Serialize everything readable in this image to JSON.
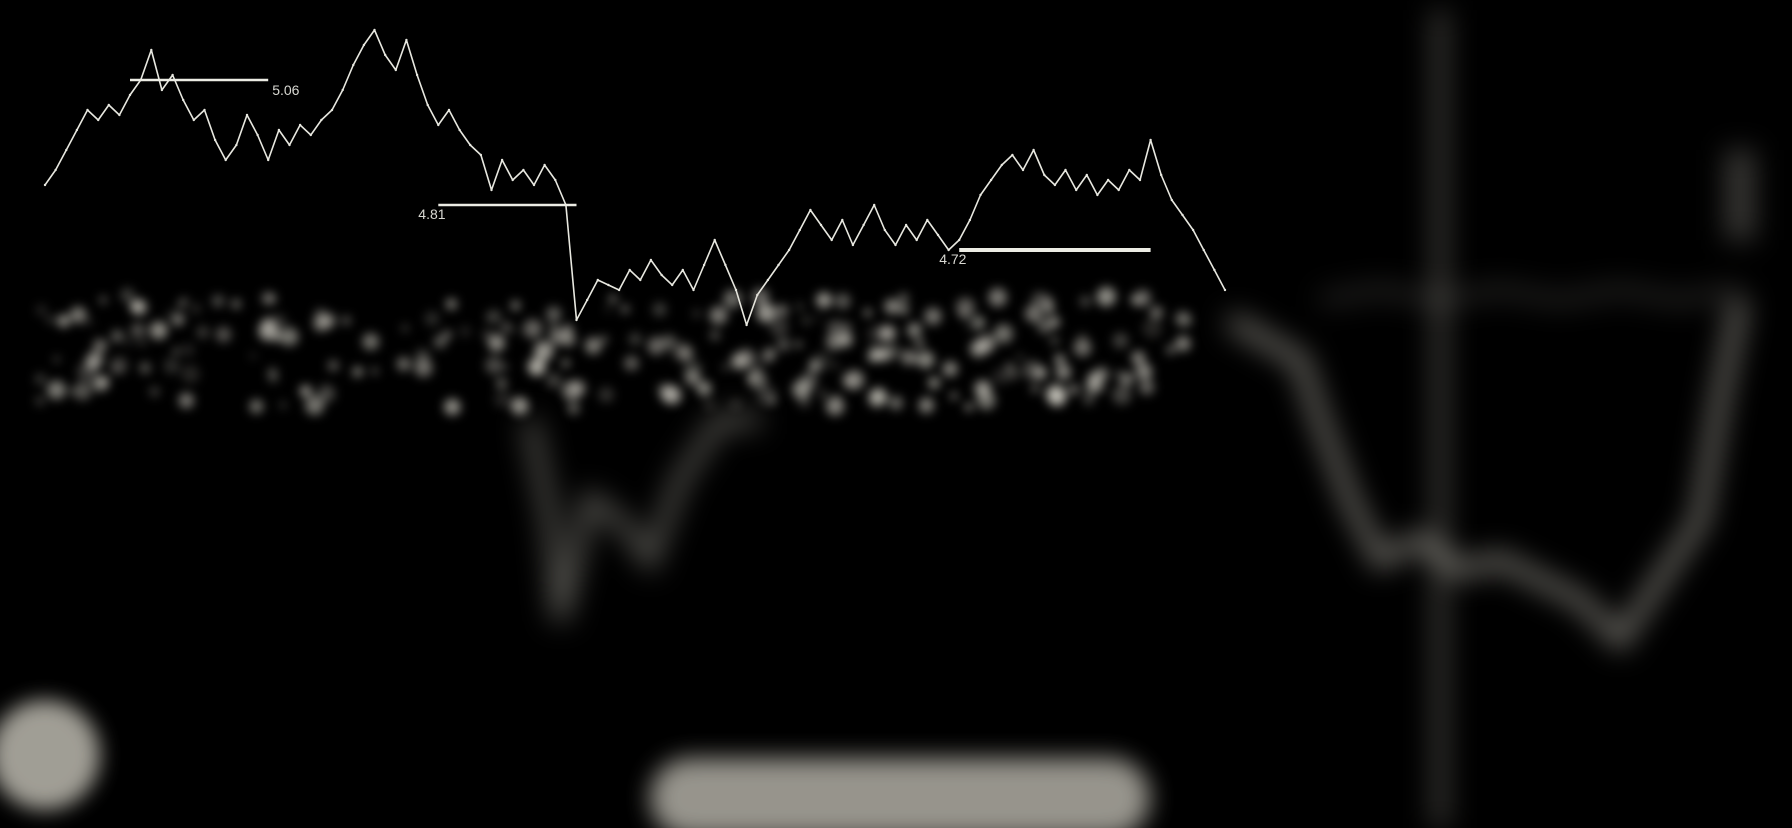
{
  "chart_data": {
    "type": "line",
    "title": "",
    "xlabel": "",
    "ylabel": "",
    "colors": {
      "background": "#000000",
      "line": "#e8e8e0",
      "level": "#ecece4"
    },
    "grid": false,
    "legend": "none",
    "ylim": [
      4.4,
      5.2
    ],
    "series": [
      {
        "values": [
          4.85,
          4.88,
          4.92,
          4.96,
          5.0,
          4.98,
          5.01,
          4.99,
          5.03,
          5.06,
          5.12,
          5.04,
          5.07,
          5.02,
          4.98,
          5.0,
          4.94,
          4.9,
          4.93,
          4.99,
          4.95,
          4.9,
          4.96,
          4.93,
          4.97,
          4.95,
          4.98,
          5.0,
          5.04,
          5.09,
          5.13,
          5.16,
          5.11,
          5.08,
          5.14,
          5.07,
          5.01,
          4.97,
          5.0,
          4.96,
          4.93,
          4.91,
          4.84,
          4.9,
          4.86,
          4.88,
          4.85,
          4.89,
          4.86,
          4.81,
          4.58,
          4.62,
          4.66,
          4.65,
          4.64,
          4.68,
          4.66,
          4.7,
          4.67,
          4.65,
          4.68,
          4.64,
          4.69,
          4.74,
          4.69,
          4.64,
          4.57,
          4.63,
          4.66,
          4.69,
          4.72,
          4.76,
          4.8,
          4.77,
          4.74,
          4.78,
          4.73,
          4.77,
          4.81,
          4.76,
          4.73,
          4.77,
          4.74,
          4.78,
          4.75,
          4.72,
          4.74,
          4.78,
          4.83,
          4.86,
          4.89,
          4.91,
          4.88,
          4.92,
          4.87,
          4.85,
          4.88,
          4.84,
          4.87,
          4.83,
          4.86,
          4.84,
          4.88,
          4.86,
          4.94,
          4.87,
          4.82,
          4.79,
          4.76,
          4.72,
          4.68,
          4.64
        ]
      }
    ],
    "levels": [
      {
        "value": 5.06,
        "label": "5.06",
        "from": 8,
        "to": 21
      },
      {
        "value": 4.81,
        "label": "4.81",
        "from": 37,
        "to": 50
      },
      {
        "value": 4.72,
        "label": "4.72",
        "from": 86,
        "to": 104
      }
    ]
  }
}
